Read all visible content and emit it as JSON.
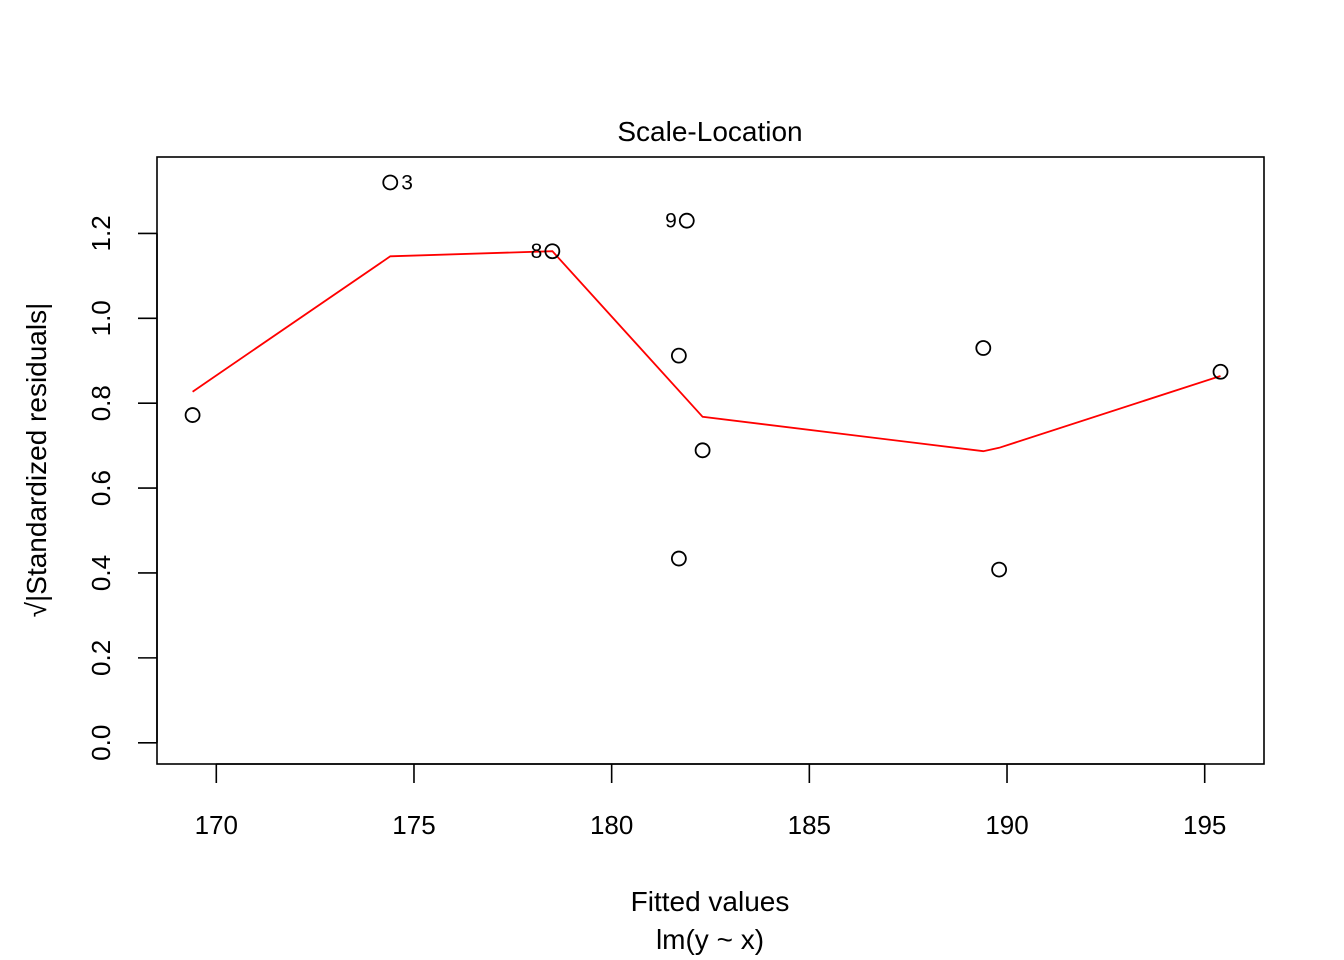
{
  "chart_data": {
    "type": "scatter",
    "title": "Scale-Location",
    "xlabel": "Fitted values",
    "xlabel_sub": "lm(y ~ x)",
    "ylabel": "√|Standardized residuals|",
    "xlim": [
      168.5,
      196.5
    ],
    "ylim": [
      -0.05,
      1.38
    ],
    "x_ticks": [
      170,
      175,
      180,
      185,
      190,
      195
    ],
    "x_tick_labels": [
      "170",
      "175",
      "180",
      "185",
      "190",
      "195"
    ],
    "y_ticks": [
      0.0,
      0.2,
      0.4,
      0.6,
      0.8,
      1.0,
      1.2
    ],
    "y_tick_labels": [
      "0.0",
      "0.2",
      "0.4",
      "0.6",
      "0.8",
      "1.0",
      "1.2"
    ],
    "points": [
      {
        "x": 169.4,
        "y": 0.772,
        "label": ""
      },
      {
        "x": 174.4,
        "y": 1.32,
        "label": "3"
      },
      {
        "x": 178.5,
        "y": 1.158,
        "label": "8"
      },
      {
        "x": 181.7,
        "y": 0.912,
        "label": ""
      },
      {
        "x": 181.7,
        "y": 0.434,
        "label": ""
      },
      {
        "x": 181.9,
        "y": 1.23,
        "label": "9"
      },
      {
        "x": 182.3,
        "y": 0.689,
        "label": ""
      },
      {
        "x": 189.4,
        "y": 0.93,
        "label": ""
      },
      {
        "x": 189.8,
        "y": 0.408,
        "label": ""
      },
      {
        "x": 195.4,
        "y": 0.874,
        "label": ""
      }
    ],
    "label_sides": {
      "3": "right",
      "8": "left",
      "9": "left"
    },
    "smooth_line": {
      "x": [
        169.4,
        174.4,
        178.5,
        182.3,
        189.4,
        189.8,
        195.4
      ],
      "y": [
        0.827,
        1.146,
        1.158,
        0.768,
        0.687,
        0.695,
        0.864
      ]
    },
    "grid": false,
    "legend": "none",
    "colors": {
      "points": "#000000",
      "smooth": "#ff0000"
    }
  }
}
